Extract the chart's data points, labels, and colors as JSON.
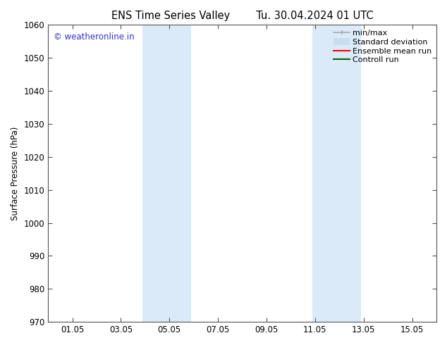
{
  "title": "ENS Time Series Valley",
  "title2": "Tu. 30.04.2024 01 UTC",
  "ylabel": "Surface Pressure (hPa)",
  "ylim": [
    970,
    1060
  ],
  "yticks": [
    970,
    980,
    990,
    1000,
    1010,
    1020,
    1030,
    1040,
    1050,
    1060
  ],
  "xlim": [
    0,
    16
  ],
  "xtick_labels": [
    "01.05",
    "03.05",
    "05.05",
    "07.05",
    "09.05",
    "11.05",
    "13.05",
    "15.05"
  ],
  "xtick_positions": [
    1,
    3,
    5,
    7,
    9,
    11,
    13,
    15
  ],
  "shaded_bands": [
    {
      "x_start": 3.9,
      "x_end": 5.9
    },
    {
      "x_start": 10.9,
      "x_end": 12.9
    }
  ],
  "shaded_color": "#daeaf8",
  "background_color": "#ffffff",
  "watermark_text": "© weatheronline.in",
  "watermark_color": "#3333cc",
  "legend_labels": [
    "min/max",
    "Standard deviation",
    "Ensemble mean run",
    "Controll run"
  ],
  "legend_colors": [
    "#aaaaaa",
    "#c8dded",
    "#ff0000",
    "#006600"
  ],
  "grid_color": "#dddddd",
  "tick_color": "#000000",
  "font_size": 8.5,
  "title_font_size": 10.5,
  "figsize": [
    6.34,
    4.9
  ],
  "dpi": 100
}
